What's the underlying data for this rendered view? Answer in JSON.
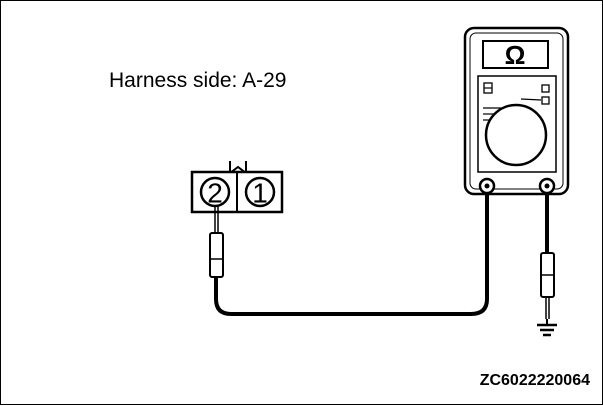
{
  "diagram": {
    "harness_label": "Harness side: A-29",
    "figure_code": "ZC6022220064",
    "connector": {
      "pins": [
        "2",
        "1"
      ]
    },
    "multimeter": {
      "unit_symbol": "Ω"
    }
  }
}
